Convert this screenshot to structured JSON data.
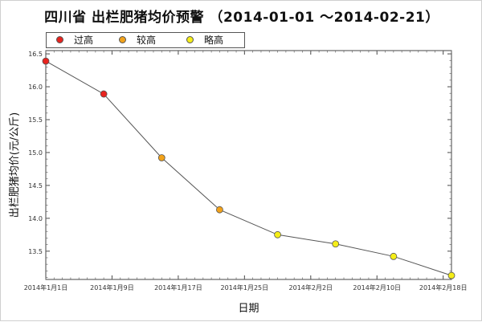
{
  "chart_data": {
    "type": "scatter",
    "title": "四川省 出栏肥猪均价预警 （2014-01-01 ～2014-02-21）",
    "xlabel": "日期",
    "ylabel": "出栏肥猪均价(元/公斤)",
    "x_ticks": [
      "2014年1月1日",
      "2014年1月9日",
      "2014年1月17日",
      "2014年1月25日",
      "2014年2月2日",
      "2014年2月10日",
      "2014年2月18日"
    ],
    "x_tick_dates": [
      "2014-01-01",
      "2014-01-09",
      "2014-01-17",
      "2014-01-25",
      "2014-02-02",
      "2014-02-10",
      "2014-02-18"
    ],
    "y_ticks": [
      "13.5",
      "14.0",
      "14.5",
      "15.0",
      "15.5",
      "16.0",
      "16.5"
    ],
    "xlim": [
      "2014-01-01",
      "2014-02-19"
    ],
    "ylim": [
      13.07,
      16.55
    ],
    "grid": false,
    "legend_position": "top-left",
    "legend": [
      {
        "name": "过高",
        "color": "#e8231e"
      },
      {
        "name": "较高",
        "color": "#f2a21a"
      },
      {
        "name": "略高",
        "color": "#f5ee18"
      }
    ],
    "points": [
      {
        "x": "2014-01-01",
        "y": 16.39,
        "level": "过高"
      },
      {
        "x": "2014-01-08",
        "y": 15.89,
        "level": "过高"
      },
      {
        "x": "2014-01-15",
        "y": 14.92,
        "level": "较高"
      },
      {
        "x": "2014-01-22",
        "y": 14.13,
        "level": "较高"
      },
      {
        "x": "2014-01-29",
        "y": 13.75,
        "level": "略高"
      },
      {
        "x": "2014-02-05",
        "y": 13.61,
        "level": "略高"
      },
      {
        "x": "2014-02-12",
        "y": 13.42,
        "level": "略高"
      },
      {
        "x": "2014-02-19",
        "y": 13.13,
        "level": "略高"
      }
    ]
  }
}
